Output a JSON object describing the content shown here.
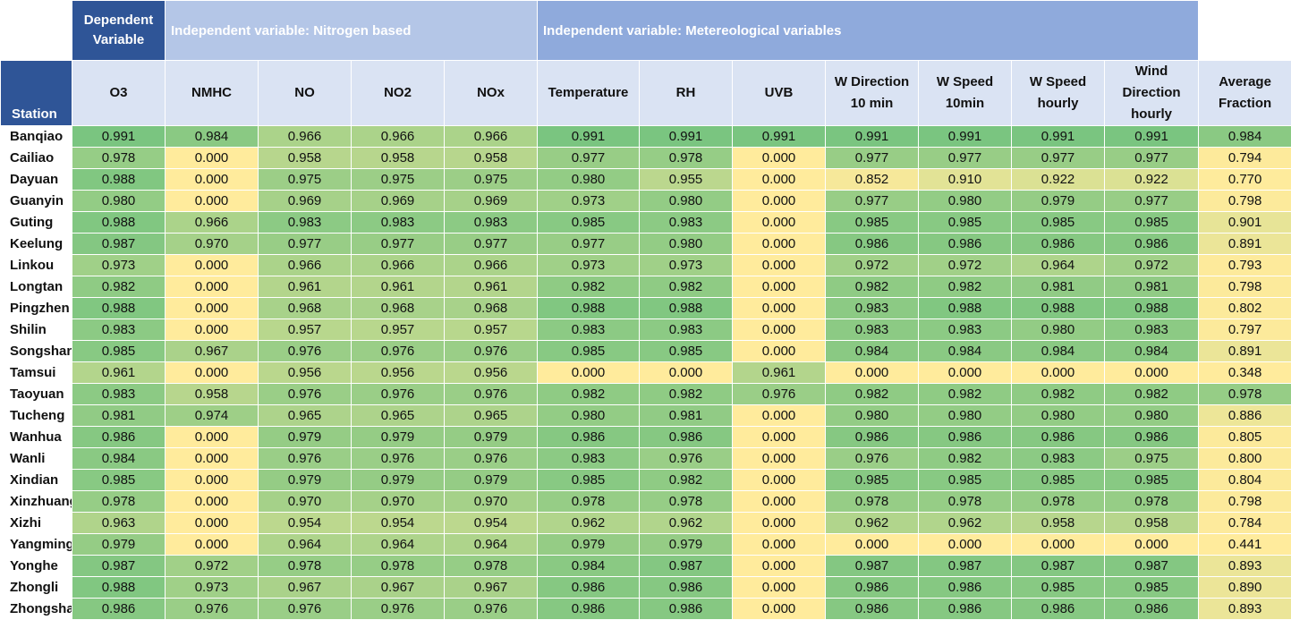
{
  "group_headers": {
    "dependent": "Dependent Variable",
    "nitrogen": "Independent variable: Nitrogen based",
    "meteorological": "Independent variable: Metereological variables"
  },
  "column_headers": [
    "Station",
    "O3",
    "NMHC",
    "NO",
    "NO2",
    "NOx",
    "Temperature",
    "RH",
    "UVB",
    "W Direction 10 min",
    "W Speed 10min",
    "W Speed hourly",
    "Wind Direction hourly",
    "Average Fraction"
  ],
  "rows": [
    {
      "station": "Banqiao",
      "values": [
        "0.991",
        "0.984",
        "0.966",
        "0.966",
        "0.966",
        "0.991",
        "0.991",
        "0.991",
        "0.991",
        "0.991",
        "0.991",
        "0.991",
        "0.984"
      ]
    },
    {
      "station": "Cailiao",
      "values": [
        "0.978",
        "0.000",
        "0.958",
        "0.958",
        "0.958",
        "0.977",
        "0.978",
        "0.000",
        "0.977",
        "0.977",
        "0.977",
        "0.977",
        "0.794"
      ]
    },
    {
      "station": "Dayuan",
      "values": [
        "0.988",
        "0.000",
        "0.975",
        "0.975",
        "0.975",
        "0.980",
        "0.955",
        "0.000",
        "0.852",
        "0.910",
        "0.922",
        "0.922",
        "0.770"
      ]
    },
    {
      "station": "Guanyin",
      "values": [
        "0.980",
        "0.000",
        "0.969",
        "0.969",
        "0.969",
        "0.973",
        "0.980",
        "0.000",
        "0.977",
        "0.980",
        "0.979",
        "0.977",
        "0.798"
      ]
    },
    {
      "station": "Guting",
      "values": [
        "0.988",
        "0.966",
        "0.983",
        "0.983",
        "0.983",
        "0.985",
        "0.983",
        "0.000",
        "0.985",
        "0.985",
        "0.985",
        "0.985",
        "0.901"
      ]
    },
    {
      "station": "Keelung",
      "values": [
        "0.987",
        "0.970",
        "0.977",
        "0.977",
        "0.977",
        "0.977",
        "0.980",
        "0.000",
        "0.986",
        "0.986",
        "0.986",
        "0.986",
        "0.891"
      ]
    },
    {
      "station": "Linkou",
      "values": [
        "0.973",
        "0.000",
        "0.966",
        "0.966",
        "0.966",
        "0.973",
        "0.973",
        "0.000",
        "0.972",
        "0.972",
        "0.964",
        "0.972",
        "0.793"
      ]
    },
    {
      "station": "Longtan",
      "values": [
        "0.982",
        "0.000",
        "0.961",
        "0.961",
        "0.961",
        "0.982",
        "0.982",
        "0.000",
        "0.982",
        "0.982",
        "0.981",
        "0.981",
        "0.798"
      ]
    },
    {
      "station": "Pingzhen",
      "values": [
        "0.988",
        "0.000",
        "0.968",
        "0.968",
        "0.968",
        "0.988",
        "0.988",
        "0.000",
        "0.983",
        "0.988",
        "0.988",
        "0.988",
        "0.802"
      ]
    },
    {
      "station": "Shilin",
      "values": [
        "0.983",
        "0.000",
        "0.957",
        "0.957",
        "0.957",
        "0.983",
        "0.983",
        "0.000",
        "0.983",
        "0.983",
        "0.980",
        "0.983",
        "0.797"
      ]
    },
    {
      "station": "Songshan",
      "values": [
        "0.985",
        "0.967",
        "0.976",
        "0.976",
        "0.976",
        "0.985",
        "0.985",
        "0.000",
        "0.984",
        "0.984",
        "0.984",
        "0.984",
        "0.891"
      ]
    },
    {
      "station": "Tamsui",
      "values": [
        "0.961",
        "0.000",
        "0.956",
        "0.956",
        "0.956",
        "0.000",
        "0.000",
        "0.961",
        "0.000",
        "0.000",
        "0.000",
        "0.000",
        "0.348"
      ]
    },
    {
      "station": "Taoyuan",
      "values": [
        "0.983",
        "0.958",
        "0.976",
        "0.976",
        "0.976",
        "0.982",
        "0.982",
        "0.976",
        "0.982",
        "0.982",
        "0.982",
        "0.982",
        "0.978"
      ]
    },
    {
      "station": "Tucheng",
      "values": [
        "0.981",
        "0.974",
        "0.965",
        "0.965",
        "0.965",
        "0.980",
        "0.981",
        "0.000",
        "0.980",
        "0.980",
        "0.980",
        "0.980",
        "0.886"
      ]
    },
    {
      "station": "Wanhua",
      "values": [
        "0.986",
        "0.000",
        "0.979",
        "0.979",
        "0.979",
        "0.986",
        "0.986",
        "0.000",
        "0.986",
        "0.986",
        "0.986",
        "0.986",
        "0.805"
      ]
    },
    {
      "station": "Wanli",
      "values": [
        "0.984",
        "0.000",
        "0.976",
        "0.976",
        "0.976",
        "0.983",
        "0.976",
        "0.000",
        "0.976",
        "0.982",
        "0.983",
        "0.975",
        "0.800"
      ]
    },
    {
      "station": "Xindian",
      "values": [
        "0.985",
        "0.000",
        "0.979",
        "0.979",
        "0.979",
        "0.985",
        "0.982",
        "0.000",
        "0.985",
        "0.985",
        "0.985",
        "0.985",
        "0.804"
      ]
    },
    {
      "station": "Xinzhuang",
      "values": [
        "0.978",
        "0.000",
        "0.970",
        "0.970",
        "0.970",
        "0.978",
        "0.978",
        "0.000",
        "0.978",
        "0.978",
        "0.978",
        "0.978",
        "0.798"
      ]
    },
    {
      "station": "Xizhi",
      "values": [
        "0.963",
        "0.000",
        "0.954",
        "0.954",
        "0.954",
        "0.962",
        "0.962",
        "0.000",
        "0.962",
        "0.962",
        "0.958",
        "0.958",
        "0.784"
      ]
    },
    {
      "station": "Yangming",
      "values": [
        "0.979",
        "0.000",
        "0.964",
        "0.964",
        "0.964",
        "0.979",
        "0.979",
        "0.000",
        "0.000",
        "0.000",
        "0.000",
        "0.000",
        "0.441"
      ]
    },
    {
      "station": "Yonghe",
      "values": [
        "0.987",
        "0.972",
        "0.978",
        "0.978",
        "0.978",
        "0.984",
        "0.987",
        "0.000",
        "0.987",
        "0.987",
        "0.987",
        "0.987",
        "0.893"
      ]
    },
    {
      "station": "Zhongli",
      "values": [
        "0.988",
        "0.973",
        "0.967",
        "0.967",
        "0.967",
        "0.986",
        "0.986",
        "0.000",
        "0.986",
        "0.986",
        "0.985",
        "0.985",
        "0.890"
      ]
    },
    {
      "station": "Zhongshan",
      "values": [
        "0.986",
        "0.976",
        "0.976",
        "0.976",
        "0.976",
        "0.986",
        "0.986",
        "0.000",
        "0.986",
        "0.986",
        "0.986",
        "0.986",
        "0.893"
      ]
    }
  ],
  "colors": {
    "header_dark_blue": "#2f5597",
    "header_light_blue": "#b4c6e7",
    "header_mid_blue": "#8faadc",
    "column_header_bg": "#dae3f3",
    "scale_low_yellow": "#ffeb9c",
    "scale_high_green": "#63be7b"
  }
}
